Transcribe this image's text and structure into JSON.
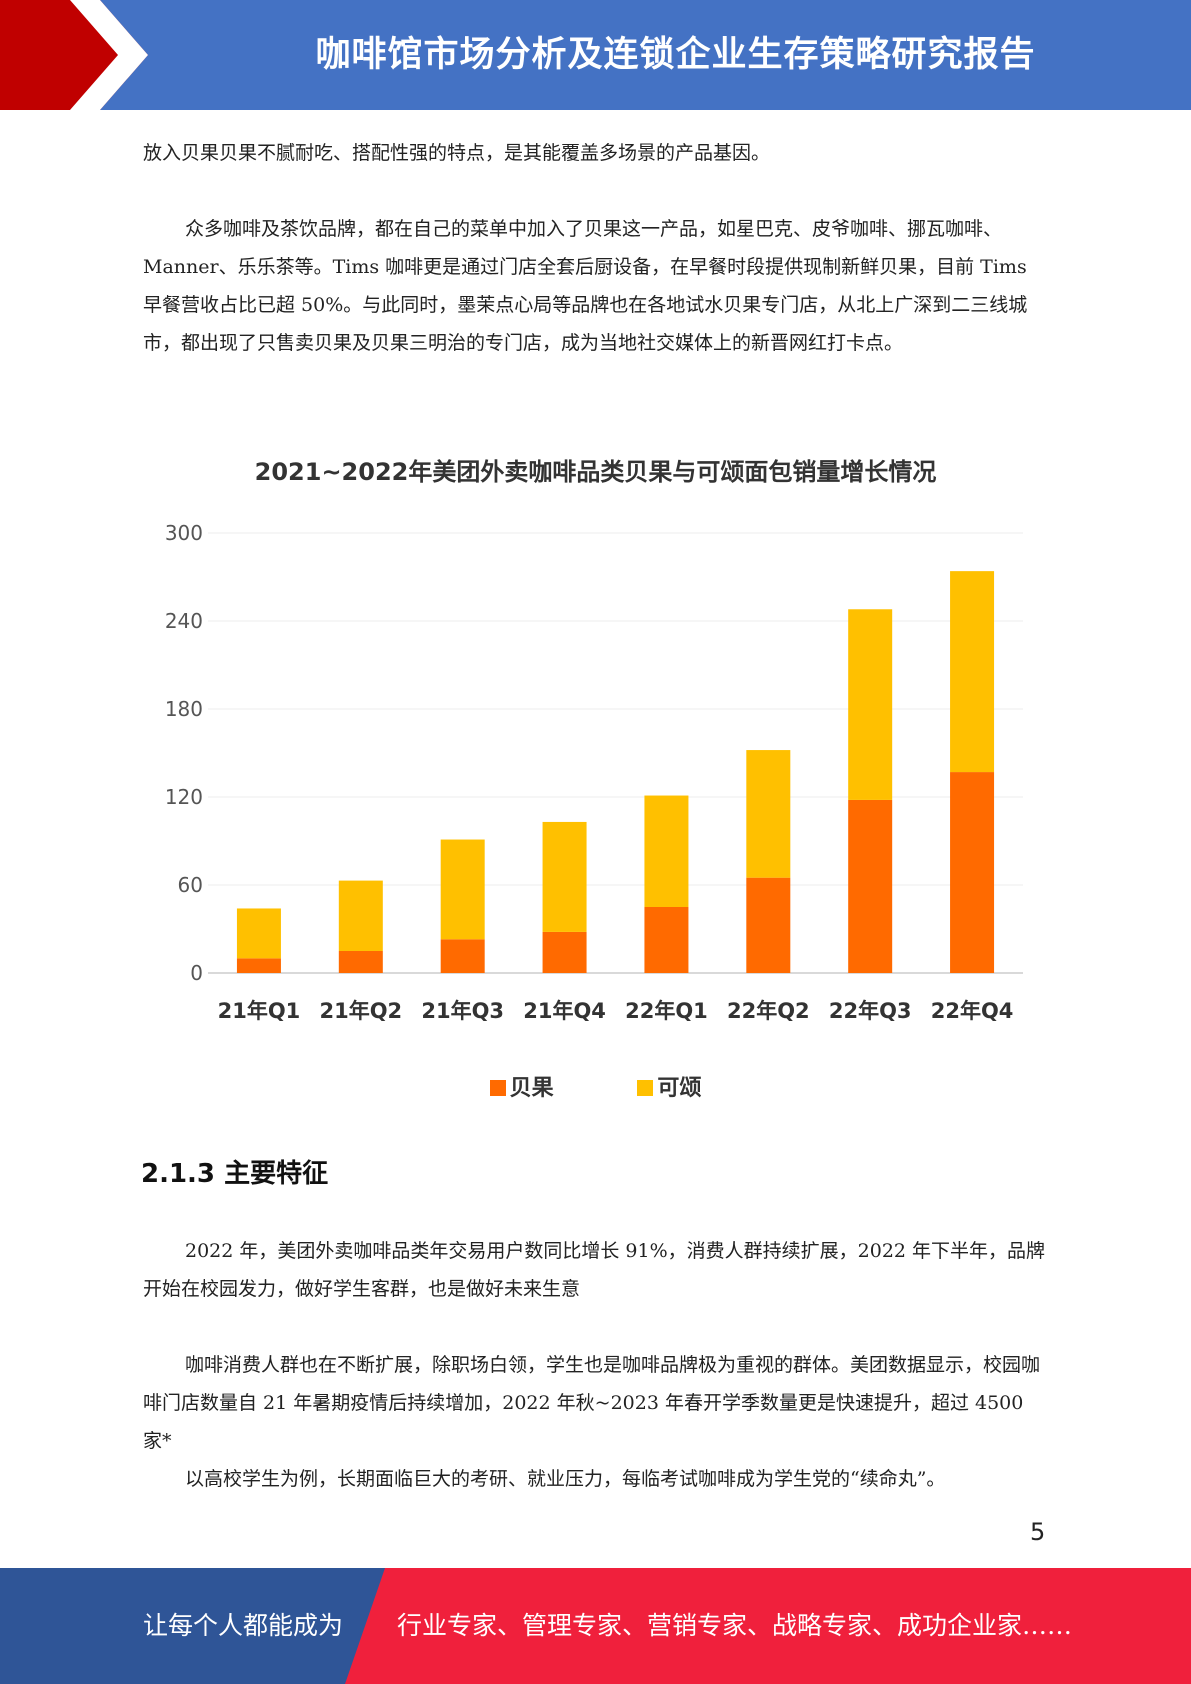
{
  "header": {
    "title": "咖啡馆市场分析及连锁企业生存策略研究报告"
  },
  "paragraphs": {
    "p1": "放入贝果贝果不腻耐吃、搭配性强的特点，是其能覆盖多场景的产品基因。",
    "p2": "众多咖啡及茶饮品牌，都在自己的菜单中加入了贝果这一产品，如星巴克、皮爷咖啡、挪瓦咖啡、Manner、乐乐茶等。Tims 咖啡更是通过门店全套后厨设备，在早餐时段提供现制新鲜贝果，目前 Tims 早餐营收占比已超 50%。与此同时，墨茉点心局等品牌也在各地试水贝果专门店，从北上广深到二三线城市，都出现了只售卖贝果及贝果三明治的专门店，成为当地社交媒体上的新晋网红打卡点。",
    "p3": "2022 年，美团外卖咖啡品类年交易用户数同比增长 91%，消费人群持续扩展，2022 年下半年，品牌开始在校园发力，做好学生客群，也是做好未来生意",
    "p4": "咖啡消费人群也在不断扩展，除职场白领，学生也是咖啡品牌极为重视的群体。美团数据显示，校园咖啡门店数量自 21 年暑期疫情后持续增加，2022 年秋~2023 年春开学季数量更是快速提升，超过 4500 家*",
    "p5": "以高校学生为例，长期面临巨大的考研、就业压力，每临考试咖啡成为学生党的“续命丸”。"
  },
  "section": {
    "heading": "2.1.3 主要特征"
  },
  "page_number": "5",
  "footer": {
    "left_text": "让每个人都能成为",
    "right_text": "行业专家、管理专家、营销专家、战略专家、成功企业家……"
  },
  "colors": {
    "header_blue": "#4472c4",
    "header_red": "#c00000",
    "footer_blue": "#2f5597",
    "footer_red": "#f0203c",
    "bagel": "#ff6a00",
    "croissant": "#ffc000"
  },
  "chart_data": {
    "type": "bar",
    "stacked": true,
    "title": "2021~2022年美团外卖咖啡品类贝果与可颂面包销量增长情况",
    "categories": [
      "21年Q1",
      "21年Q2",
      "21年Q3",
      "21年Q4",
      "22年Q1",
      "22年Q2",
      "22年Q3",
      "22年Q4"
    ],
    "series": [
      {
        "name": "贝果",
        "color": "#ff6a00",
        "values": [
          10,
          15,
          23,
          28,
          45,
          65,
          118,
          137
        ]
      },
      {
        "name": "可颂",
        "color": "#ffc000",
        "values": [
          34,
          48,
          68,
          75,
          76,
          87,
          130,
          137
        ]
      }
    ],
    "y_ticks": [
      0,
      60,
      120,
      180,
      240,
      300
    ],
    "ylim": [
      0,
      300
    ],
    "grid": true,
    "legend_position": "bottom"
  }
}
